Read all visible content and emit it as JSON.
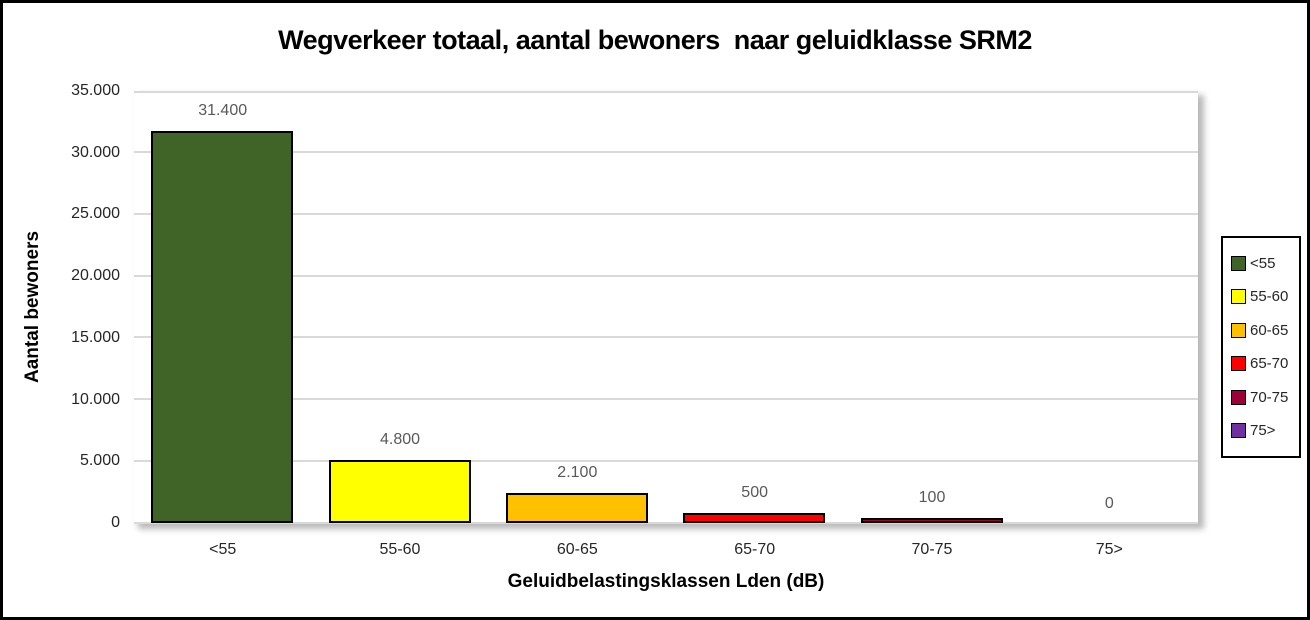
{
  "window": {
    "background_color": "#ffffff",
    "frame_border_color": "#000000"
  },
  "chart_data": {
    "type": "bar",
    "title": "Wegverkeer totaal, aantal bewoners  naar geluidklasse SRM2",
    "xlabel": "Geluidbelastingsklassen Lden (dB)",
    "ylabel": "Aantal bewoners",
    "categories": [
      "<55",
      "55-60",
      "60-65",
      "65-70",
      "70-75",
      "75>"
    ],
    "values": [
      31400,
      4800,
      2100,
      500,
      100,
      0
    ],
    "data_labels": [
      "31.400",
      "4.800",
      "2.100",
      "500",
      "100",
      "0"
    ],
    "bar_colors": [
      "#406428",
      "#FFFF00",
      "#FFC000",
      "#FF0000",
      "#9E0038",
      "#7030A0"
    ],
    "bar_border_color": "#000000",
    "data_label_color": "#595959",
    "ylim": [
      0,
      35000
    ],
    "ytick_step": 5000,
    "ytick_labels": [
      "0",
      "5.000",
      "10.000",
      "15.000",
      "20.000",
      "25.000",
      "30.000",
      "35.000"
    ],
    "grid": true,
    "gridline_color": "#d9d9d9",
    "plot_background": "#ffffff",
    "legend": {
      "position": "right",
      "border_color": "#000000",
      "entries": [
        {
          "label": "<55",
          "color": "#406428"
        },
        {
          "label": "55-60",
          "color": "#FFFF00"
        },
        {
          "label": "60-65",
          "color": "#FFC000"
        },
        {
          "label": "65-70",
          "color": "#FF0000"
        },
        {
          "label": "70-75",
          "color": "#9E0038"
        },
        {
          "label": "75>",
          "color": "#7030A0"
        }
      ]
    }
  }
}
